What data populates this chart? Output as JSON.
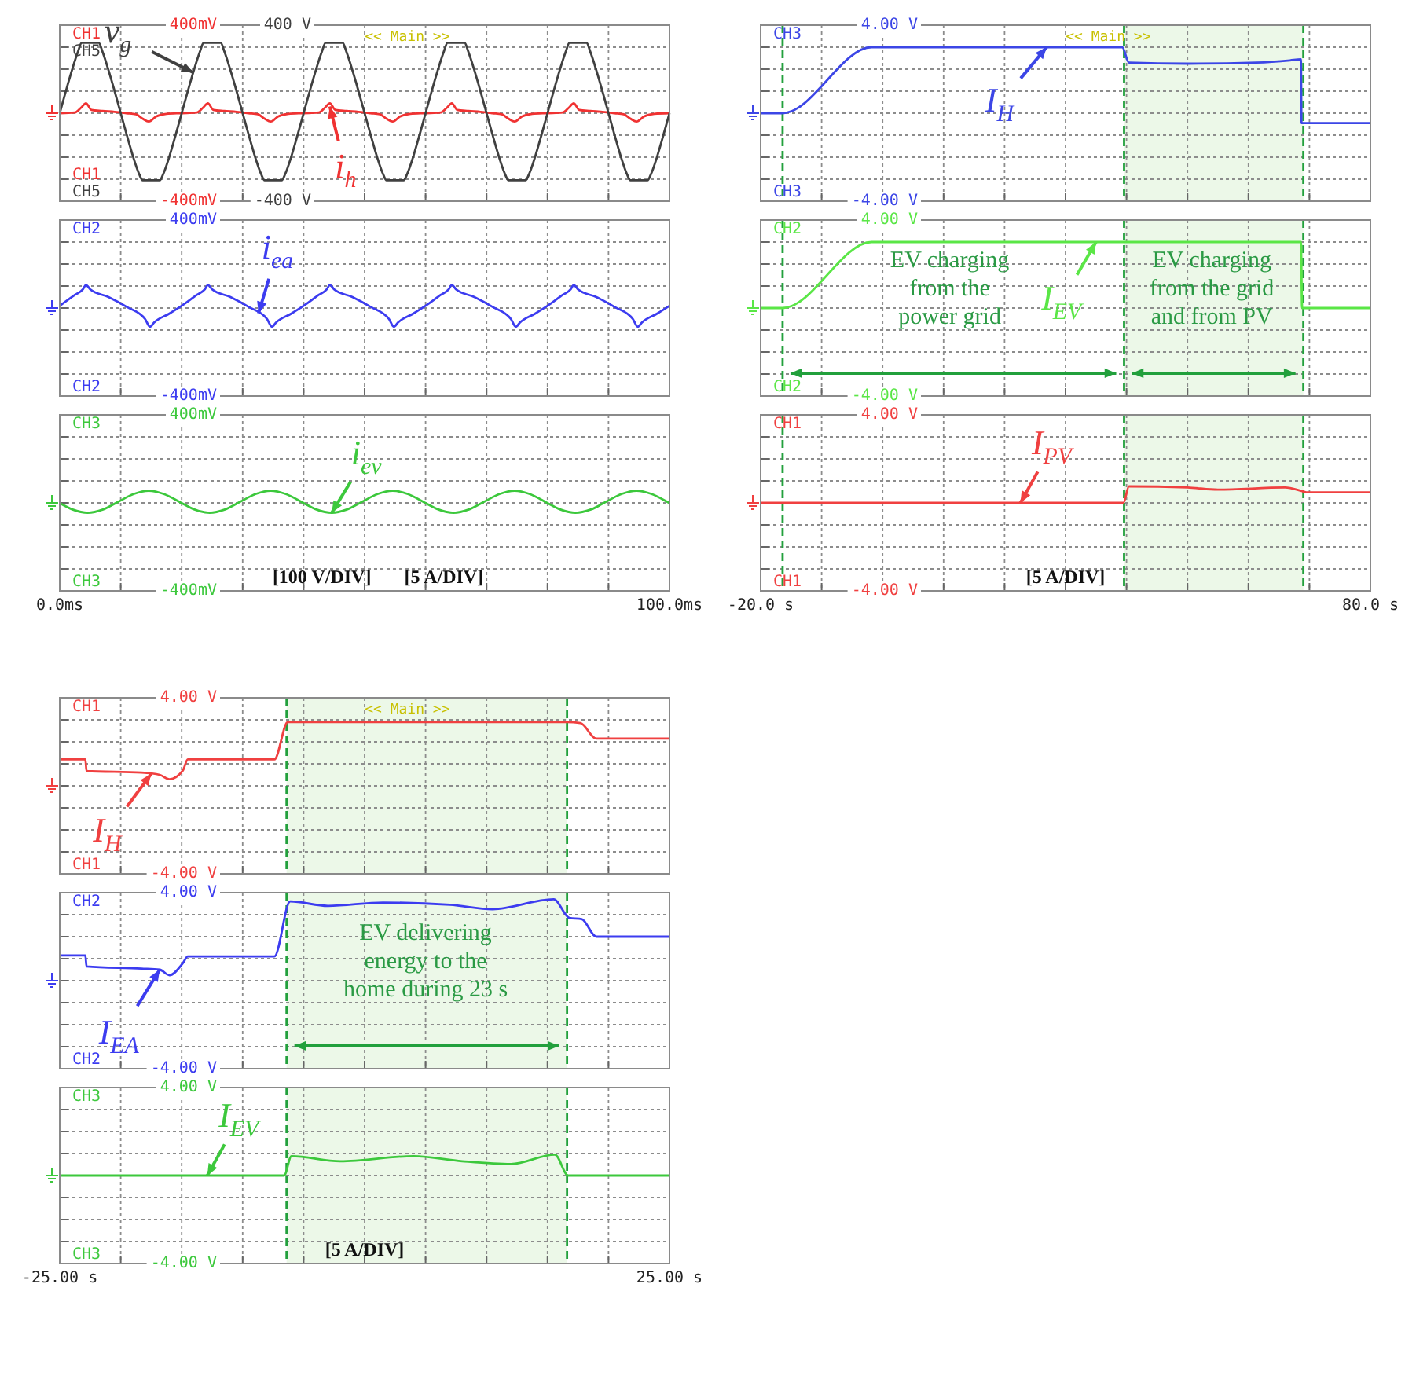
{
  "chart_data": [
    {
      "type": "line",
      "xlim": [
        0,
        100
      ],
      "xticks": [
        {
          "value": 0,
          "label": null
        },
        {
          "value": 10,
          "label": null
        },
        {
          "value": 20,
          "label": null
        },
        {
          "value": 30,
          "label": null
        },
        {
          "value": 40,
          "label": null
        },
        {
          "value": 50,
          "label": null
        },
        {
          "value": 60,
          "label": null
        },
        {
          "value": 70,
          "label": null
        },
        {
          "value": 80,
          "label": null
        },
        {
          "value": 90,
          "label": null
        },
        {
          "value": 100,
          "label": null
        }
      ],
      "ylim": [
        -400,
        400
      ],
      "yticks": [
        {
          "value": -400,
          "label": "-400mV"
        },
        {
          "value": -300,
          "label": null
        },
        {
          "value": -200,
          "label": null
        },
        {
          "value": -100,
          "label": null
        },
        {
          "value": 0,
          "label": null
        },
        {
          "value": 100,
          "label": null
        },
        {
          "value": 200,
          "label": null
        },
        {
          "value": 300,
          "label": null
        },
        {
          "value": 400,
          "label": "400mV"
        }
      ],
      "y2lim": [
        -400,
        400
      ],
      "y2ticks": [
        {
          "value": -400,
          "label": "-400 V"
        },
        {
          "value": 400,
          "label": "400 V"
        }
      ],
      "grid": true,
      "tick_labels": "y",
      "series": [
        {
          "name": "CH1",
          "color": "#f03232",
          "x": [
            0,
            2.5,
            3.5,
            4.3,
            5.2,
            7,
            9,
            11,
            12.5,
            13.6,
            14.6,
            15.8,
            17.5,
            20,
            22.5,
            23.5,
            24.3,
            25.2,
            27,
            29,
            31,
            32.5,
            33.6,
            34.6,
            35.8,
            37.5,
            40,
            42.5,
            43.5,
            44.3,
            45.2,
            47,
            49,
            51,
            52.5,
            53.6,
            54.6,
            55.8,
            57.5,
            60,
            62.5,
            63.5,
            64.3,
            65.2,
            67,
            69,
            71,
            72.5,
            73.6,
            74.6,
            75.8,
            77.5,
            80,
            82.5,
            83.5,
            84.3,
            85.2,
            87,
            89,
            91,
            92.5,
            93.6,
            94.6,
            95.8,
            97.5,
            100
          ],
          "values": [
            0,
            3,
            25,
            45,
            15,
            10,
            6,
            0,
            -5,
            -25,
            -38,
            -15,
            -3,
            0,
            3,
            25,
            45,
            15,
            10,
            6,
            0,
            -5,
            -25,
            -38,
            -15,
            -3,
            0,
            3,
            25,
            45,
            15,
            10,
            6,
            0,
            -5,
            -25,
            -38,
            -15,
            -3,
            0,
            3,
            25,
            45,
            15,
            10,
            6,
            0,
            -5,
            -25,
            -38,
            -15,
            -3,
            0,
            3,
            25,
            45,
            15,
            10,
            6,
            0,
            -5,
            -25,
            -38,
            -15,
            -3,
            0
          ]
        },
        {
          "name": "CH5",
          "color": "#404040",
          "axis": "y2",
          "x": [
            0,
            1,
            2,
            3,
            3.6,
            6.4,
            7,
            8,
            9,
            10,
            11,
            12,
            13,
            13.6,
            16.4,
            17,
            18,
            19,
            20,
            21,
            22,
            23,
            23.6,
            26.4,
            27,
            28,
            29,
            30,
            31,
            32,
            33,
            33.6,
            36.4,
            37,
            38,
            39,
            40,
            41,
            42,
            43,
            43.6,
            46.4,
            47,
            48,
            49,
            50,
            51,
            52,
            53,
            53.6,
            56.4,
            57,
            58,
            59,
            60,
            61,
            62,
            63,
            63.6,
            66.4,
            67,
            68,
            69,
            70,
            71,
            72,
            73,
            73.6,
            76.4,
            77,
            78,
            79,
            80,
            81,
            82,
            83,
            83.6,
            86.4,
            87,
            88,
            89,
            90,
            91,
            92,
            93,
            93.6,
            96.4,
            97,
            98,
            99,
            100
          ],
          "values": [
            0,
            100,
            195,
            280,
            320,
            320,
            280,
            195,
            100,
            0,
            -100,
            -195,
            -275,
            -305,
            -305,
            -275,
            -195,
            -100,
            0,
            100,
            195,
            280,
            320,
            320,
            280,
            195,
            100,
            0,
            -100,
            -195,
            -275,
            -305,
            -305,
            -275,
            -195,
            -100,
            0,
            100,
            195,
            280,
            320,
            320,
            280,
            195,
            100,
            0,
            -100,
            -195,
            -275,
            -305,
            -305,
            -275,
            -195,
            -100,
            0,
            100,
            195,
            280,
            320,
            320,
            280,
            195,
            100,
            0,
            -100,
            -195,
            -275,
            -305,
            -305,
            -275,
            -195,
            -100,
            0,
            100,
            195,
            280,
            320,
            320,
            280,
            195,
            100,
            0,
            -100,
            -195,
            -275,
            -305,
            -305,
            -275,
            -195,
            -100,
            0
          ]
        }
      ],
      "annotations": [
        {
          "text": "v$_{g}$",
          "x": 21.9,
          "y": 185
        },
        {
          "text": "i$_{h}$",
          "x": 44.3,
          "y": 30
        },
        "<< Main >>"
      ]
    },
    {
      "type": "line",
      "xlim": [
        0,
        100
      ],
      "xticks": [
        {
          "value": 0,
          "label": null
        },
        {
          "value": 10,
          "label": null
        },
        {
          "value": 20,
          "label": null
        },
        {
          "value": 30,
          "label": null
        },
        {
          "value": 40,
          "label": null
        },
        {
          "value": 50,
          "label": null
        },
        {
          "value": 60,
          "label": null
        },
        {
          "value": 70,
          "label": null
        },
        {
          "value": 80,
          "label": null
        },
        {
          "value": 90,
          "label": null
        },
        {
          "value": 100,
          "label": null
        }
      ],
      "ylim": [
        -400,
        400
      ],
      "yticks": [
        {
          "value": -400,
          "label": "-400mV"
        },
        {
          "value": -300,
          "label": null
        },
        {
          "value": -200,
          "label": null
        },
        {
          "value": -100,
          "label": null
        },
        {
          "value": 0,
          "label": null
        },
        {
          "value": 100,
          "label": null
        },
        {
          "value": 200,
          "label": null
        },
        {
          "value": 300,
          "label": null
        },
        {
          "value": 400,
          "label": "400mV"
        }
      ],
      "grid": true,
      "tick_labels": "y",
      "series": [
        {
          "name": "CH2",
          "color": "#3c3cf0",
          "x": [
            0,
            2.5,
            3.8,
            4.3,
            5,
            8,
            11,
            14,
            14.8,
            15.5,
            18,
            20,
            22.5,
            23.8,
            24.3,
            25,
            28,
            31,
            34,
            34.8,
            35.5,
            38,
            40,
            42.5,
            43.8,
            44.3,
            45,
            48,
            51,
            54,
            54.8,
            55.5,
            58,
            60,
            62.5,
            63.8,
            64.3,
            65,
            68,
            71,
            74,
            74.8,
            75.5,
            78,
            80,
            82.5,
            83.8,
            84.3,
            85,
            88,
            91,
            94,
            94.8,
            95.5,
            98,
            100
          ],
          "values": [
            10,
            60,
            85,
            105,
            85,
            50,
            5,
            -50,
            -85,
            -65,
            -25,
            10,
            60,
            85,
            105,
            85,
            50,
            5,
            -50,
            -85,
            -65,
            -25,
            10,
            60,
            85,
            105,
            85,
            50,
            5,
            -50,
            -85,
            -65,
            -25,
            10,
            60,
            85,
            105,
            85,
            50,
            5,
            -50,
            -85,
            -65,
            -25,
            10,
            60,
            85,
            105,
            85,
            50,
            5,
            -50,
            -85,
            -65,
            -25,
            10
          ]
        }
      ],
      "annotations": [
        {
          "text": "i$_{ea}$",
          "x": 32.6,
          "y": -24
        }
      ]
    },
    {
      "type": "line",
      "xlim": [
        0,
        100
      ],
      "xticks": [
        {
          "value": 0,
          "label": "0.0ms"
        },
        {
          "value": 10,
          "label": null
        },
        {
          "value": 20,
          "label": null
        },
        {
          "value": 30,
          "label": null
        },
        {
          "value": 40,
          "label": null
        },
        {
          "value": 50,
          "label": null
        },
        {
          "value": 60,
          "label": null
        },
        {
          "value": 70,
          "label": null
        },
        {
          "value": 80,
          "label": null
        },
        {
          "value": 90,
          "label": null
        },
        {
          "value": 100,
          "label": "100.0ms"
        }
      ],
      "ylim": [
        -400,
        400
      ],
      "yticks": [
        {
          "value": -400,
          "label": "-400mV"
        },
        {
          "value": -300,
          "label": null
        },
        {
          "value": -200,
          "label": null
        },
        {
          "value": -100,
          "label": null
        },
        {
          "value": 0,
          "label": null
        },
        {
          "value": 100,
          "label": null
        },
        {
          "value": 200,
          "label": null
        },
        {
          "value": 300,
          "label": null
        },
        {
          "value": 400,
          "label": "400mV"
        }
      ],
      "grid": true,
      "series": [
        {
          "name": "CH3",
          "color": "#3cc83c",
          "x": [
            0,
            2.1,
            4.6,
            7.1,
            9.6,
            12.1,
            14.6,
            17.1,
            19.6,
            20,
            22.1,
            24.6,
            27.1,
            29.6,
            32.1,
            34.6,
            37.1,
            39.6,
            40,
            42.1,
            44.6,
            47.1,
            49.6,
            52.1,
            54.6,
            57.1,
            59.6,
            60,
            62.1,
            64.6,
            67.1,
            69.6,
            72.1,
            74.6,
            77.1,
            79.6,
            80,
            82.1,
            84.6,
            87.1,
            89.6,
            92.1,
            94.6,
            97.1,
            99.6,
            100
          ],
          "values": [
            -1,
            -30,
            -45,
            -30,
            5,
            40,
            55,
            40,
            5,
            -1,
            -30,
            -45,
            -30,
            5,
            40,
            55,
            40,
            5,
            -1,
            -30,
            -45,
            -30,
            5,
            40,
            55,
            40,
            5,
            -1,
            -30,
            -45,
            -30,
            5,
            40,
            55,
            40,
            5,
            -1,
            -30,
            -45,
            -30,
            5,
            40,
            55,
            40,
            5,
            -1
          ]
        }
      ],
      "annotations": [
        {
          "text": "i$_{ev}$",
          "x": 44.6,
          "y": -45
        },
        "[100 V/DIV]",
        "[5 A/DIV]"
      ]
    },
    {
      "type": "line",
      "xlim": [
        -20,
        80
      ],
      "xticks": [
        {
          "value": -20,
          "label": null
        },
        {
          "value": -10,
          "label": null
        },
        {
          "value": 0,
          "label": null
        },
        {
          "value": 10,
          "label": null
        },
        {
          "value": 20,
          "label": null
        },
        {
          "value": 30,
          "label": null
        },
        {
          "value": 40,
          "label": null
        },
        {
          "value": 50,
          "label": null
        },
        {
          "value": 60,
          "label": null
        },
        {
          "value": 70,
          "label": null
        },
        {
          "value": 80,
          "label": null
        }
      ],
      "ylim": [
        -4,
        4
      ],
      "yticks": [
        {
          "value": -4,
          "label": "-4.00 V"
        },
        {
          "value": -3,
          "label": null
        },
        {
          "value": -2,
          "label": null
        },
        {
          "value": -1,
          "label": null
        },
        {
          "value": 0,
          "label": null
        },
        {
          "value": 1,
          "label": null
        },
        {
          "value": 2,
          "label": null
        },
        {
          "value": 3,
          "label": null
        },
        {
          "value": 4,
          "label": "4.00 V"
        }
      ],
      "grid": true,
      "tick_labels": "y",
      "series": [
        {
          "name": "CH3",
          "color": "#3c46e6",
          "x": [
            -20,
            -16.4,
            -1.8,
            39.3,
            40.4,
            50,
            61.3,
            66.8,
            68.6,
            68.7,
            80
          ],
          "values": [
            0,
            0,
            3,
            3,
            2.3,
            2.25,
            2.3,
            2.4,
            2.45,
            -0.45,
            -0.45
          ]
        }
      ],
      "ref_lines": [
        {
          "axis": "x",
          "value": -16.4,
          "color": "#22a03c",
          "line_style": "dashed"
        },
        {
          "axis": "x",
          "value": 39.6,
          "color": "#22a03c",
          "line_style": "dashed"
        },
        {
          "axis": "x",
          "value": 69,
          "color": "#22a03c",
          "line_style": "dashed"
        }
      ],
      "bands": [
        {
          "axis": "x",
          "from": 39.6,
          "to": 69,
          "color": "#ecf8e8"
        }
      ],
      "annotations": [
        {
          "text": "I$_{H}$",
          "x": 26.9,
          "y": 3
        },
        "<< Main >>"
      ]
    },
    {
      "type": "line",
      "xlim": [
        -20,
        80
      ],
      "xticks": [
        {
          "value": -20,
          "label": null
        },
        {
          "value": -10,
          "label": null
        },
        {
          "value": 0,
          "label": null
        },
        {
          "value": 10,
          "label": null
        },
        {
          "value": 20,
          "label": null
        },
        {
          "value": 30,
          "label": null
        },
        {
          "value": 40,
          "label": null
        },
        {
          "value": 50,
          "label": null
        },
        {
          "value": 60,
          "label": null
        },
        {
          "value": 70,
          "label": null
        },
        {
          "value": 80,
          "label": null
        }
      ],
      "ylim": [
        -4,
        4
      ],
      "yticks": [
        {
          "value": -4,
          "label": "-4.00 V"
        },
        {
          "value": -3,
          "label": null
        },
        {
          "value": -2,
          "label": null
        },
        {
          "value": -1,
          "label": null
        },
        {
          "value": 0,
          "label": null
        },
        {
          "value": 1,
          "label": null
        },
        {
          "value": 2,
          "label": null
        },
        {
          "value": 3,
          "label": null
        },
        {
          "value": 4,
          "label": "4.00 V"
        }
      ],
      "grid": true,
      "tick_labels": "y",
      "series": [
        {
          "name": "CH2",
          "color": "#5ae646",
          "x": [
            -20,
            -16.4,
            -1.8,
            68.6,
            68.8,
            80
          ],
          "values": [
            0,
            0,
            3,
            3,
            0,
            0
          ]
        }
      ],
      "ref_lines": [
        {
          "axis": "x",
          "value": -16.4,
          "color": "#22a03c",
          "line_style": "dashed"
        },
        {
          "axis": "x",
          "value": 39.6,
          "color": "#22a03c",
          "line_style": "dashed"
        },
        {
          "axis": "x",
          "value": 69,
          "color": "#22a03c",
          "line_style": "dashed"
        }
      ],
      "bands": [
        {
          "axis": "x",
          "from": 39.6,
          "to": 69,
          "color": "#ecf8e8"
        }
      ],
      "annotations": [
        {
          "text": "I$_{EV}$",
          "x": 35,
          "y": 3
        },
        "EV charging\nfrom the\npower grid",
        "EV charging\nfrom the grid\nand from PV"
      ]
    },
    {
      "type": "line",
      "xlim": [
        -20,
        80
      ],
      "xticks": [
        {
          "value": -20,
          "label": "-20.0 s"
        },
        {
          "value": -10,
          "label": null
        },
        {
          "value": 0,
          "label": null
        },
        {
          "value": 10,
          "label": null
        },
        {
          "value": 20,
          "label": null
        },
        {
          "value": 30,
          "label": null
        },
        {
          "value": 40,
          "label": null
        },
        {
          "value": 50,
          "label": null
        },
        {
          "value": 60,
          "label": null
        },
        {
          "value": 70,
          "label": null
        },
        {
          "value": 80,
          "label": "80.0 s"
        }
      ],
      "ylim": [
        -4,
        4
      ],
      "yticks": [
        {
          "value": -4,
          "label": "-4.00 V"
        },
        {
          "value": -3,
          "label": null
        },
        {
          "value": -2,
          "label": null
        },
        {
          "value": -1,
          "label": null
        },
        {
          "value": 0,
          "label": null
        },
        {
          "value": 1,
          "label": null
        },
        {
          "value": 2,
          "label": null
        },
        {
          "value": 3,
          "label": null
        },
        {
          "value": 4,
          "label": "4.00 V"
        }
      ],
      "grid": true,
      "series": [
        {
          "name": "CH1",
          "color": "#f04040",
          "x": [
            -20,
            39.5,
            40.4,
            50,
            55,
            66,
            68.6,
            69.5,
            80
          ],
          "values": [
            0,
            0,
            0.75,
            0.7,
            0.6,
            0.7,
            0.55,
            0.48,
            0.48
          ]
        }
      ],
      "ref_lines": [
        {
          "axis": "x",
          "value": -16.4,
          "color": "#22a03c",
          "line_style": "dashed"
        },
        {
          "axis": "x",
          "value": 39.6,
          "color": "#22a03c",
          "line_style": "dashed"
        },
        {
          "axis": "x",
          "value": 69,
          "color": "#22a03c",
          "line_style": "dashed"
        }
      ],
      "bands": [
        {
          "axis": "x",
          "from": 39.6,
          "to": 69,
          "color": "#ecf8e8"
        }
      ],
      "annotations": [
        {
          "text": "I$_{PV}$",
          "x": 22.6,
          "y": 0
        },
        "[5 A/DIV]"
      ]
    },
    {
      "type": "line",
      "xlim": [
        -25,
        25
      ],
      "xticks": [
        {
          "value": -25,
          "label": null
        },
        {
          "value": -20,
          "label": null
        },
        {
          "value": -15,
          "label": null
        },
        {
          "value": -10,
          "label": null
        },
        {
          "value": -5,
          "label": null
        },
        {
          "value": 0,
          "label": null
        },
        {
          "value": 5,
          "label": null
        },
        {
          "value": 10,
          "label": null
        },
        {
          "value": 15,
          "label": null
        },
        {
          "value": 20,
          "label": null
        },
        {
          "value": 25,
          "label": null
        }
      ],
      "ylim": [
        -4,
        4
      ],
      "yticks": [
        {
          "value": -4,
          "label": "-4.00 V"
        },
        {
          "value": -3,
          "label": null
        },
        {
          "value": -2,
          "label": null
        },
        {
          "value": -1,
          "label": null
        },
        {
          "value": 0,
          "label": null
        },
        {
          "value": 1,
          "label": null
        },
        {
          "value": 2,
          "label": null
        },
        {
          "value": 3,
          "label": null
        },
        {
          "value": 4,
          "label": "4.00 V"
        }
      ],
      "grid": true,
      "tick_labels": "y",
      "series": [
        {
          "name": "CH1",
          "color": "#f04040",
          "x": [
            -25,
            -22.9,
            -22.8,
            -18.3,
            -16.8,
            -16,
            -14.9,
            -14.5,
            -7.4,
            -6.3,
            16.6,
            17.7,
            19,
            25
          ],
          "values": [
            1.2,
            1.2,
            0.67,
            0.6,
            0.5,
            0.3,
            0.7,
            1.2,
            1.2,
            2.9,
            2.9,
            2.85,
            2.15,
            2.15
          ]
        }
      ],
      "ref_lines": [
        {
          "axis": "x",
          "value": -6.4,
          "color": "#22a03c",
          "line_style": "dashed"
        },
        {
          "axis": "x",
          "value": 16.6,
          "color": "#22a03c",
          "line_style": "dashed"
        }
      ],
      "bands": [
        {
          "axis": "x",
          "from": -6.4,
          "to": 16.6,
          "color": "#ecf8e8"
        }
      ],
      "annotations": [
        {
          "text": "I$_{H}$",
          "x": -17.5,
          "y": 0.55
        },
        "<< Main >>"
      ]
    },
    {
      "type": "line",
      "xlim": [
        -25,
        25
      ],
      "xticks": [
        {
          "value": -25,
          "label": null
        },
        {
          "value": -20,
          "label": null
        },
        {
          "value": -15,
          "label": null
        },
        {
          "value": -10,
          "label": null
        },
        {
          "value": -5,
          "label": null
        },
        {
          "value": 0,
          "label": null
        },
        {
          "value": 5,
          "label": null
        },
        {
          "value": 10,
          "label": null
        },
        {
          "value": 15,
          "label": null
        },
        {
          "value": 20,
          "label": null
        },
        {
          "value": 25,
          "label": null
        }
      ],
      "ylim": [
        -4,
        4
      ],
      "yticks": [
        {
          "value": -4,
          "label": "-4.00 V"
        },
        {
          "value": -3,
          "label": null
        },
        {
          "value": -2,
          "label": null
        },
        {
          "value": -1,
          "label": null
        },
        {
          "value": 0,
          "label": null
        },
        {
          "value": 1,
          "label": null
        },
        {
          "value": 2,
          "label": null
        },
        {
          "value": 3,
          "label": null
        },
        {
          "value": 4,
          "label": "4.00 V"
        }
      ],
      "grid": true,
      "tick_labels": "y",
      "series": [
        {
          "name": "CH2",
          "color": "#3c3cf0",
          "x": [
            -25,
            -22.9,
            -22.8,
            -18.3,
            -16.8,
            -16,
            -14.9,
            -14.5,
            -7.4,
            -6.1,
            -3,
            1.5,
            7,
            10.5,
            15.5,
            16.8,
            17.8,
            19,
            25
          ],
          "values": [
            1.15,
            1.15,
            0.65,
            0.55,
            0.5,
            0.25,
            0.8,
            1.1,
            1.1,
            3.6,
            3.4,
            3.55,
            3.45,
            3.25,
            3.7,
            2.85,
            2.8,
            2,
            2
          ]
        }
      ],
      "ref_lines": [
        {
          "axis": "x",
          "value": -6.4,
          "color": "#22a03c",
          "line_style": "dashed"
        },
        {
          "axis": "x",
          "value": 16.6,
          "color": "#22a03c",
          "line_style": "dashed"
        }
      ],
      "bands": [
        {
          "axis": "x",
          "from": -6.4,
          "to": 16.6,
          "color": "#ecf8e8"
        }
      ],
      "annotations": [
        {
          "text": "I$_{EA}$",
          "x": -16.8,
          "y": 0.5
        },
        "EV delivering\nenergy to the\nhome during 23 s"
      ]
    },
    {
      "type": "line",
      "xlim": [
        -25,
        25
      ],
      "xticks": [
        {
          "value": -25,
          "label": "-25.00 s"
        },
        {
          "value": -20,
          "label": null
        },
        {
          "value": -15,
          "label": null
        },
        {
          "value": -10,
          "label": null
        },
        {
          "value": -5,
          "label": null
        },
        {
          "value": 0,
          "label": null
        },
        {
          "value": 5,
          "label": null
        },
        {
          "value": 10,
          "label": null
        },
        {
          "value": 15,
          "label": null
        },
        {
          "value": 20,
          "label": null
        },
        {
          "value": 25,
          "label": "25.00 s"
        }
      ],
      "ylim": [
        -4,
        4
      ],
      "yticks": [
        {
          "value": -4,
          "label": "-4.00 V"
        },
        {
          "value": -3,
          "label": null
        },
        {
          "value": -2,
          "label": null
        },
        {
          "value": -1,
          "label": null
        },
        {
          "value": 0,
          "label": null
        },
        {
          "value": 1,
          "label": null
        },
        {
          "value": 2,
          "label": null
        },
        {
          "value": 3,
          "label": null
        },
        {
          "value": 4,
          "label": "4.00 V"
        }
      ],
      "grid": true,
      "series": [
        {
          "name": "CH3",
          "color": "#3cc83c",
          "x": [
            -25,
            -6.6,
            -6,
            -2,
            4,
            8,
            12,
            15.6,
            16.7,
            25
          ],
          "values": [
            0,
            0,
            0.88,
            0.65,
            0.88,
            0.65,
            0.52,
            0.95,
            0,
            0
          ]
        }
      ],
      "ref_lines": [
        {
          "axis": "x",
          "value": -6.4,
          "color": "#22a03c",
          "line_style": "dashed"
        },
        {
          "axis": "x",
          "value": 16.6,
          "color": "#22a03c",
          "line_style": "dashed"
        }
      ],
      "bands": [
        {
          "axis": "x",
          "from": -6.4,
          "to": 16.6,
          "color": "#ecf8e8"
        }
      ],
      "annotations": [
        {
          "text": "I$_{EV}$",
          "x": -12.9,
          "y": 0
        },
        "[5 A/DIV]"
      ]
    }
  ]
}
